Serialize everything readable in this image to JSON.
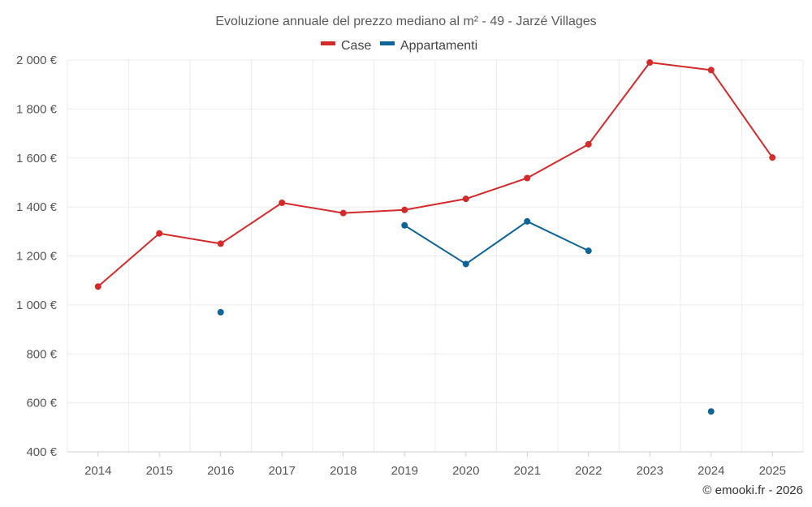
{
  "chart_data": {
    "type": "line",
    "title": "Evoluzione annuale del prezzo mediano al m² - 49 - Jarzé Villages",
    "categories": [
      "2014",
      "2015",
      "2016",
      "2017",
      "2018",
      "2019",
      "2020",
      "2021",
      "2022",
      "2023",
      "2024",
      "2025"
    ],
    "ylim": [
      400,
      2000
    ],
    "yticks": [
      400,
      600,
      800,
      1000,
      1200,
      1400,
      1600,
      1800,
      2000
    ],
    "ytick_labels": [
      "400 €",
      "600 €",
      "800 €",
      "1 000 €",
      "1 200 €",
      "1 400 €",
      "1 600 €",
      "1 800 €",
      "2 000 €"
    ],
    "grid": true,
    "legend_position": "top-center",
    "series": [
      {
        "name": "Case",
        "color": "#d42a2a",
        "values": [
          1075,
          1292,
          1250,
          1417,
          1375,
          1388,
          1433,
          1518,
          1656,
          1990,
          1959,
          1602
        ]
      },
      {
        "name": "Appartamenti",
        "color": "#0e6399",
        "values": [
          null,
          null,
          970,
          null,
          null,
          1325,
          1167,
          1341,
          1221,
          null,
          565,
          null
        ]
      }
    ]
  },
  "credit": "© emooki.fr - 2026"
}
